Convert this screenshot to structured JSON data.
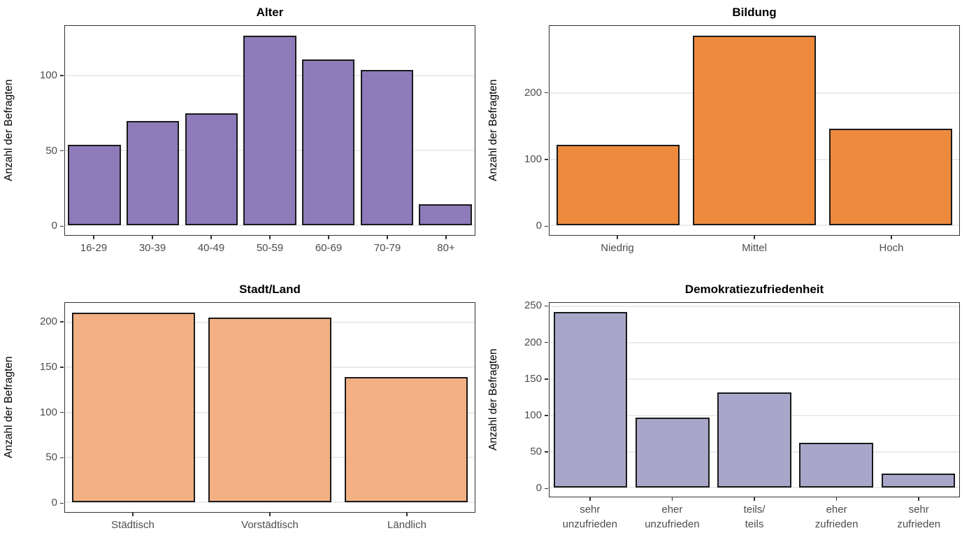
{
  "page": {
    "background": "#ffffff",
    "layout": "2x2-grid-of-bar-charts"
  },
  "style": {
    "panel_border": "#333333",
    "gridline_color": "#ebebeb",
    "bar_stroke": "#1a1a1a",
    "axis_text_color": "#4d4d4d",
    "title_color": "#000000"
  },
  "chart_data": [
    {
      "type": "bar",
      "title": "Alter",
      "ylabel": "Anzahl der Befragten",
      "categories": [
        "16-29",
        "30-39",
        "40-49",
        "50-59",
        "60-69",
        "70-79",
        "80+"
      ],
      "values": [
        54,
        70,
        75,
        127,
        111,
        104,
        14
      ],
      "yticks": [
        0,
        50,
        100
      ],
      "ylim": [
        0,
        133
      ],
      "bar_fill": "#8d7bba",
      "grid": true,
      "legend": "none"
    },
    {
      "type": "bar",
      "title": "Bildung",
      "ylabel": "Anzahl der Befragten",
      "categories": [
        "Niedrig",
        "Mittel",
        "Hoch"
      ],
      "values": [
        122,
        287,
        146
      ],
      "yticks": [
        0,
        100,
        200
      ],
      "ylim": [
        0,
        301
      ],
      "bar_fill": "#ee8a3e",
      "grid": true,
      "legend": "none"
    },
    {
      "type": "bar",
      "title": "Stadt/Land",
      "ylabel": "Anzahl der Befragten",
      "categories": [
        "Städtisch",
        "Vorstädtisch",
        "Ländlich"
      ],
      "values": [
        211,
        205,
        139
      ],
      "yticks": [
        0,
        50,
        100,
        150,
        200
      ],
      "ylim": [
        0,
        222
      ],
      "bar_fill": "#f2b083",
      "grid": true,
      "legend": "none"
    },
    {
      "type": "bar",
      "title": "Demokratiezufriedenheit",
      "ylabel": "Anzahl der Befragten",
      "categories": [
        "sehr\nunzufrieden",
        "eher\nunzufrieden",
        "teils/\nteils",
        "eher\nzufrieden",
        "sehr\nzufrieden"
      ],
      "values": [
        243,
        97,
        132,
        62,
        20
      ],
      "yticks": [
        0,
        50,
        100,
        150,
        200,
        250
      ],
      "ylim": [
        0,
        255
      ],
      "bar_fill": "#a8a7c9",
      "grid": true,
      "legend": "none"
    }
  ]
}
